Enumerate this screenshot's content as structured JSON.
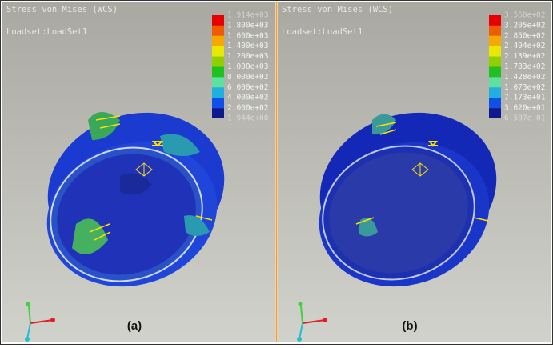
{
  "panels": [
    {
      "title": "Stress von Mises (WCS)",
      "loadset": "Loadset:LoadSet1",
      "caption": "(a)",
      "legend_labels": [
        "1.914e+03",
        "1.800e+03",
        "1.600e+03",
        "1.400e+03",
        "1.200e+03",
        "1.000e+03",
        "8.000e+02",
        "6.000e+02",
        "4.000e+02",
        "2.000e+02",
        "1.944e+00"
      ]
    },
    {
      "title": "Stress von Mises (WCS)",
      "loadset": "Loadset:LoadSet1",
      "caption": "(b)",
      "legend_labels": [
        "3.560e+02",
        "3.205e+02",
        "2.850e+02",
        "2.494e+02",
        "2.139e+02",
        "1.783e+02",
        "1.428e+02",
        "1.073e+02",
        "7.173e+01",
        "3.620e+01",
        "6.507e-01"
      ]
    }
  ]
}
